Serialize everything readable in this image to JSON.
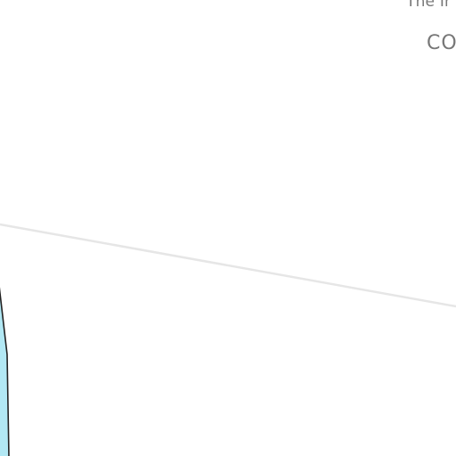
{
  "map": {
    "labels": {
      "street_fragment": "The Ir",
      "area_fragment": "CO"
    },
    "colors": {
      "background": "#ffffff",
      "road_line": "#e6e6e6",
      "water_fill": "#b2e8f4",
      "water_outline": "#222222",
      "label_text": "#777777"
    },
    "features": {
      "road": "road-line",
      "water": "water-body"
    }
  }
}
